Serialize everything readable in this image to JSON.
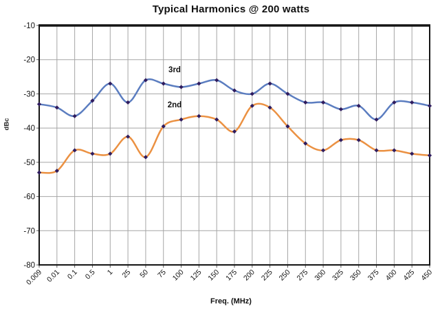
{
  "chart": {
    "title": "Typical Harmonics @ 200 watts",
    "y_axis_label": "dBc",
    "x_axis_label": "Freq. (MHz)"
  },
  "chart_data": {
    "type": "line",
    "title": "Typical Harmonics @ 200 watts",
    "xlabel": "Freq. (MHz)",
    "ylabel": "dBc",
    "categories": [
      "0.009",
      "0.01",
      "0.1",
      "0.5",
      "1",
      "25",
      "50",
      "75",
      "100",
      "125",
      "150",
      "175",
      "200",
      "225",
      "250",
      "275",
      "300",
      "325",
      "350",
      "375",
      "400",
      "425",
      "450"
    ],
    "series": [
      {
        "name": "3rd",
        "color": "#5b7dc0",
        "values": [
          -33,
          -34,
          -36.5,
          -32,
          -27,
          -32.5,
          -26,
          -27,
          -28,
          -27,
          -26,
          -29,
          -30,
          -27,
          -30,
          -32.5,
          -32.5,
          -34.5,
          -33.5,
          -37.5,
          -32.5,
          -32.5,
          -33.5
        ]
      },
      {
        "name": "2nd",
        "color": "#eb9142",
        "values": [
          -53,
          -52.5,
          -46.5,
          -47.5,
          -47.5,
          -42.5,
          -48.5,
          -39.5,
          -37.5,
          -36.5,
          -37.5,
          -41,
          -33.5,
          -34,
          -39.5,
          -44.5,
          -46.5,
          -43.5,
          -43.5,
          -46.5,
          -46.5,
          -47.5,
          -48
        ]
      }
    ],
    "ylim": [
      -80,
      -10
    ],
    "ytick_step": 10,
    "grid": true,
    "legend_position": "inline-labels",
    "marker_shape": "diamond",
    "marker_color": "#2f1c5e",
    "grid_color": "#a5a5a5",
    "frame_color": "#141414",
    "tick_label_color": "#111111"
  }
}
